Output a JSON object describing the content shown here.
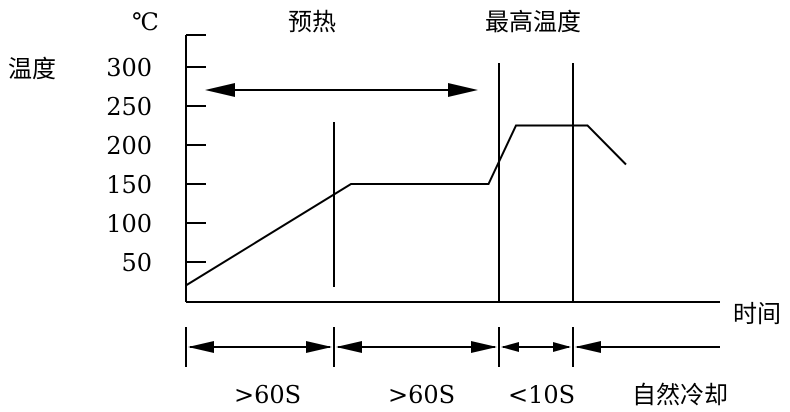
{
  "chart_data": {
    "type": "line",
    "title": "",
    "unit_label": "℃",
    "ylabel": "温度",
    "xlabel": "时间",
    "ylim": [
      0,
      300
    ],
    "yticks": [
      "50",
      "100",
      "150",
      "200",
      "250",
      "300"
    ],
    "ytick_values": [
      50,
      100,
      150,
      200,
      250,
      300
    ],
    "grid": false,
    "legend": "none",
    "series": [
      {
        "name": "",
        "x": [
          0,
          60,
          110,
          120,
          146,
          160
        ],
        "y": [
          20,
          150,
          150,
          225,
          225,
          175
        ]
      }
    ],
    "annotations": {
      "preheat": "预热",
      "peak": "最高温度"
    },
    "phase_labels": [
      ">60S",
      ">60S",
      "<10S",
      "自然冷却"
    ]
  }
}
